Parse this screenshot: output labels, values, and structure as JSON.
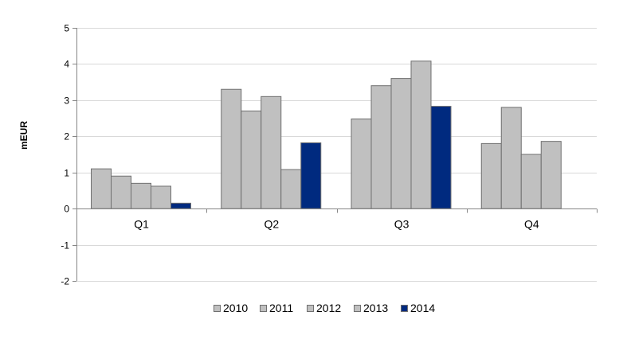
{
  "chart_data": {
    "type": "bar",
    "title": "",
    "xlabel": "",
    "ylabel": "mEUR",
    "ylim": [
      -2,
      5
    ],
    "yticks": [
      "-2",
      "-1",
      "0",
      "1",
      "2",
      "3",
      "4",
      "5"
    ],
    "grid": true,
    "legend_position": "bottom",
    "categories": [
      "Q1",
      "Q2",
      "Q3",
      "Q4"
    ],
    "series": [
      {
        "name": "2010",
        "color": "#c0c0c0",
        "values": [
          1.1,
          3.3,
          2.48,
          1.8
        ]
      },
      {
        "name": "2011",
        "color": "#c0c0c0",
        "values": [
          0.9,
          2.7,
          3.4,
          2.8
        ]
      },
      {
        "name": "2012",
        "color": "#c0c0c0",
        "values": [
          0.7,
          3.1,
          3.6,
          1.5
        ]
      },
      {
        "name": "2013",
        "color": "#c0c0c0",
        "values": [
          0.62,
          1.08,
          4.08,
          1.86
        ]
      },
      {
        "name": "2014",
        "color": "#002a7f",
        "values": [
          0.15,
          1.82,
          2.83,
          null
        ]
      }
    ]
  }
}
